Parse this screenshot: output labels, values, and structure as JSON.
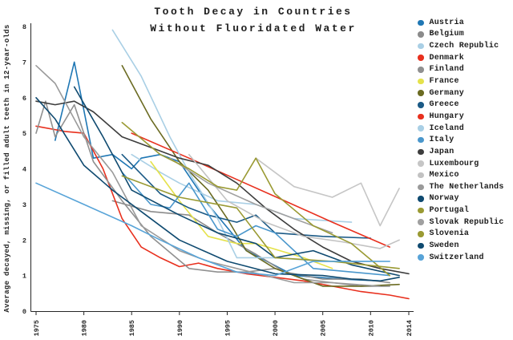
{
  "figure": {
    "title_line1": "Tooth Decay in Countries",
    "title_line2": "Without Fluoridated Water"
  },
  "chart_data": {
    "type": "line",
    "title": "Tooth Decay in Countries Without Fluoridated Water",
    "xlabel": "",
    "ylabel": "Average decayed, missing, or filled adult teeth in 12-year-olds",
    "x_ticks": [
      "1975",
      "1980",
      "1985",
      "1990",
      "1995",
      "2000",
      "2005",
      "2010",
      "2014"
    ],
    "x_tick_years": [
      1975,
      1980,
      1985,
      1990,
      1995,
      2000,
      2005,
      2010,
      2014
    ],
    "y_ticks": [
      0,
      1,
      2,
      3,
      4,
      5,
      6,
      7,
      8
    ],
    "xlim": [
      1975,
      2014
    ],
    "ylim": [
      0,
      8
    ],
    "grid": false,
    "legend_position": "right",
    "series": [
      {
        "name": "Austria",
        "color": "#1f77b4",
        "points": [
          [
            1977,
            4.8
          ],
          [
            1979,
            7.0
          ],
          [
            1981,
            4.3
          ],
          [
            1983,
            4.4
          ],
          [
            1985,
            4.0
          ],
          [
            1986,
            4.3
          ],
          [
            1988,
            4.4
          ],
          [
            1990,
            4.2
          ],
          [
            1993,
            3.0
          ],
          [
            1997,
            1.7
          ],
          [
            2002,
            1.0
          ],
          [
            2007,
            0.9
          ],
          [
            2011,
            0.85
          ]
        ]
      },
      {
        "name": "Belgium",
        "color": "#8b8b8b",
        "points": [
          [
            1983,
            3.1
          ],
          [
            1987,
            2.8
          ],
          [
            1991,
            2.7
          ],
          [
            1994,
            2.2
          ],
          [
            1998,
            1.6
          ],
          [
            2001,
            1.1
          ],
          [
            2005,
            0.9
          ],
          [
            2009,
            0.9
          ],
          [
            2012,
            0.8
          ]
        ]
      },
      {
        "name": "Czech Republic",
        "color": "#a9cfe5",
        "points": [
          [
            1985,
            4.4
          ],
          [
            1988,
            3.9
          ],
          [
            1990,
            3.6
          ],
          [
            1994,
            3.1
          ],
          [
            1998,
            3.0
          ],
          [
            2002,
            2.6
          ],
          [
            2008,
            2.5
          ]
        ]
      },
      {
        "name": "Denmark",
        "color": "#e8301e",
        "points": [
          [
            1975,
            5.2
          ],
          [
            1978,
            5.05
          ],
          [
            1980,
            5.0
          ],
          [
            1982,
            4.0
          ],
          [
            1984,
            2.6
          ],
          [
            1986,
            1.8
          ],
          [
            1988,
            1.5
          ],
          [
            1990,
            1.25
          ],
          [
            1992,
            1.35
          ],
          [
            1994,
            1.2
          ],
          [
            1997,
            1.05
          ],
          [
            2000,
            0.95
          ],
          [
            2003,
            0.85
          ],
          [
            2006,
            0.7
          ],
          [
            2009,
            0.55
          ],
          [
            2012,
            0.45
          ],
          [
            2014,
            0.35
          ]
        ]
      },
      {
        "name": "Finland",
        "color": "#909090",
        "points": [
          [
            1975,
            5.0
          ],
          [
            1976,
            5.9
          ],
          [
            1977,
            4.9
          ],
          [
            1979,
            5.8
          ],
          [
            1981,
            4.2
          ],
          [
            1984,
            3.1
          ],
          [
            1987,
            2.1
          ],
          [
            1991,
            1.2
          ],
          [
            1994,
            1.1
          ],
          [
            1997,
            1.1
          ],
          [
            2000,
            1.2
          ],
          [
            2003,
            0.9
          ],
          [
            2006,
            0.8
          ],
          [
            2009,
            0.7
          ],
          [
            2012,
            0.7
          ]
        ]
      },
      {
        "name": "France",
        "color": "#e5e24b",
        "points": [
          [
            1987,
            4.2
          ],
          [
            1990,
            3.1
          ],
          [
            1993,
            2.1
          ],
          [
            1996,
            1.9
          ],
          [
            1998,
            1.9
          ],
          [
            2003,
            1.5
          ],
          [
            2006,
            1.2
          ]
        ]
      },
      {
        "name": "Germany",
        "color": "#6b6b22",
        "points": [
          [
            1984,
            6.9
          ],
          [
            1987,
            5.4
          ],
          [
            1990,
            4.2
          ],
          [
            1993,
            3.4
          ],
          [
            1995,
            2.6
          ],
          [
            1997,
            1.7
          ],
          [
            2000,
            1.2
          ],
          [
            2005,
            0.7
          ],
          [
            2009,
            0.7
          ],
          [
            2013,
            0.75
          ]
        ]
      },
      {
        "name": "Greece",
        "color": "#1b5a86",
        "points": [
          [
            1984,
            4.4
          ],
          [
            1988,
            3.3
          ],
          [
            1991,
            2.9
          ],
          [
            1993,
            2.7
          ],
          [
            1996,
            2.5
          ],
          [
            1998,
            2.7
          ],
          [
            2000,
            2.2
          ],
          [
            2005,
            2.1
          ],
          [
            2010,
            2.05
          ]
        ]
      },
      {
        "name": "Hungary",
        "color": "#e8301e",
        "points": [
          [
            1985,
            5.0
          ],
          [
            1991,
            4.3
          ],
          [
            1996,
            3.7
          ],
          [
            2001,
            3.1
          ],
          [
            2006,
            2.5
          ],
          [
            2012,
            1.8
          ]
        ]
      },
      {
        "name": "Iceland",
        "color": "#a9cfe5",
        "points": [
          [
            1983,
            7.9
          ],
          [
            1986,
            6.6
          ],
          [
            1989,
            4.9
          ],
          [
            1991,
            3.9
          ],
          [
            1994,
            2.6
          ],
          [
            1996,
            1.5
          ],
          [
            2000,
            1.5
          ],
          [
            2005,
            1.4
          ],
          [
            2010,
            1.4
          ]
        ]
      },
      {
        "name": "Italy",
        "color": "#4a97cc",
        "points": [
          [
            1984,
            3.9
          ],
          [
            1987,
            3.0
          ],
          [
            1989,
            2.9
          ],
          [
            1991,
            3.6
          ],
          [
            1994,
            2.3
          ],
          [
            1996,
            2.1
          ],
          [
            1998,
            2.4
          ],
          [
            2000,
            2.2
          ],
          [
            2004,
            1.2
          ],
          [
            2008,
            1.1
          ],
          [
            2012,
            1.0
          ]
        ]
      },
      {
        "name": "Japan",
        "color": "#3d3d3d",
        "points": [
          [
            1975,
            5.9
          ],
          [
            1977,
            5.8
          ],
          [
            1979,
            5.9
          ],
          [
            1981,
            5.6
          ],
          [
            1984,
            4.9
          ],
          [
            1987,
            4.6
          ],
          [
            1990,
            4.3
          ],
          [
            1993,
            4.1
          ],
          [
            1996,
            3.6
          ],
          [
            1999,
            2.9
          ],
          [
            2002,
            2.3
          ],
          [
            2005,
            1.8
          ],
          [
            2008,
            1.4
          ],
          [
            2011,
            1.2
          ],
          [
            2014,
            1.05
          ]
        ]
      },
      {
        "name": "Luxembourg",
        "color": "#c6c6c6",
        "points": [
          [
            1998,
            4.3
          ],
          [
            2002,
            3.5
          ],
          [
            2006,
            3.2
          ],
          [
            2009,
            3.6
          ],
          [
            2011,
            2.4
          ],
          [
            2013,
            3.45
          ]
        ]
      },
      {
        "name": "Mexico",
        "color": "#c2c2c2",
        "points": [
          [
            1991,
            4.4
          ],
          [
            1995,
            3.1
          ],
          [
            1999,
            2.5
          ],
          [
            2003,
            2.1
          ],
          [
            2007,
            1.95
          ],
          [
            2011,
            1.76
          ],
          [
            2013,
            2.0
          ]
        ]
      },
      {
        "name": "The Netherlands",
        "color": "#9a9a9a",
        "points": [
          [
            1975,
            6.9
          ],
          [
            1977,
            6.4
          ],
          [
            1980,
            4.9
          ],
          [
            1983,
            3.9
          ],
          [
            1986,
            2.4
          ],
          [
            1990,
            1.7
          ],
          [
            1993,
            1.4
          ],
          [
            1996,
            1.2
          ],
          [
            1999,
            1.0
          ],
          [
            2002,
            0.8
          ],
          [
            2006,
            0.8
          ],
          [
            2011,
            0.7
          ]
        ]
      },
      {
        "name": "Norway",
        "color": "#0f4a70",
        "points": [
          [
            1979,
            6.3
          ],
          [
            1982,
            4.9
          ],
          [
            1985,
            3.4
          ],
          [
            1990,
            2.7
          ],
          [
            1994,
            2.2
          ],
          [
            1998,
            1.9
          ],
          [
            2000,
            1.5
          ],
          [
            2004,
            1.7
          ],
          [
            2008,
            1.3
          ],
          [
            2013,
            1.0
          ]
        ]
      },
      {
        "name": "Portugal",
        "color": "#9a9a33",
        "points": [
          [
            1984,
            3.8
          ],
          [
            1990,
            3.2
          ],
          [
            1996,
            2.9
          ],
          [
            2000,
            1.5
          ],
          [
            2006,
            1.4
          ],
          [
            2013,
            1.2
          ]
        ]
      },
      {
        "name": "Slovak Republic",
        "color": "#a0a0a0",
        "points": [
          [
            1989,
            4.3
          ],
          [
            1993,
            3.6
          ],
          [
            1998,
            3.0
          ],
          [
            2003,
            2.5
          ],
          [
            2006,
            2.2
          ]
        ]
      },
      {
        "name": "Slovenia",
        "color": "#9a9a33",
        "points": [
          [
            1984,
            5.3
          ],
          [
            1988,
            4.4
          ],
          [
            1991,
            4.0
          ],
          [
            1994,
            3.5
          ],
          [
            1996,
            3.4
          ],
          [
            1998,
            4.3
          ],
          [
            2000,
            3.3
          ],
          [
            2004,
            2.4
          ],
          [
            2008,
            1.9
          ],
          [
            2012,
            1.0
          ]
        ]
      },
      {
        "name": "Sweden",
        "color": "#0f4a70",
        "points": [
          [
            1975,
            6.0
          ],
          [
            1977,
            5.4
          ],
          [
            1980,
            4.1
          ],
          [
            1983,
            3.4
          ],
          [
            1986,
            2.8
          ],
          [
            1990,
            2.0
          ],
          [
            1995,
            1.4
          ],
          [
            2000,
            1.05
          ],
          [
            2005,
            1.0
          ],
          [
            2008,
            0.9
          ],
          [
            2011,
            0.85
          ],
          [
            2013,
            0.95
          ]
        ]
      },
      {
        "name": "Switzerland",
        "color": "#58a4d8",
        "points": [
          [
            1975,
            3.6
          ],
          [
            1980,
            3.0
          ],
          [
            1985,
            2.4
          ],
          [
            1988,
            2.0
          ],
          [
            1992,
            1.5
          ],
          [
            1996,
            1.1
          ],
          [
            2000,
            1.0
          ],
          [
            2004,
            1.4
          ],
          [
            2008,
            1.4
          ],
          [
            2012,
            1.4
          ]
        ]
      }
    ]
  }
}
